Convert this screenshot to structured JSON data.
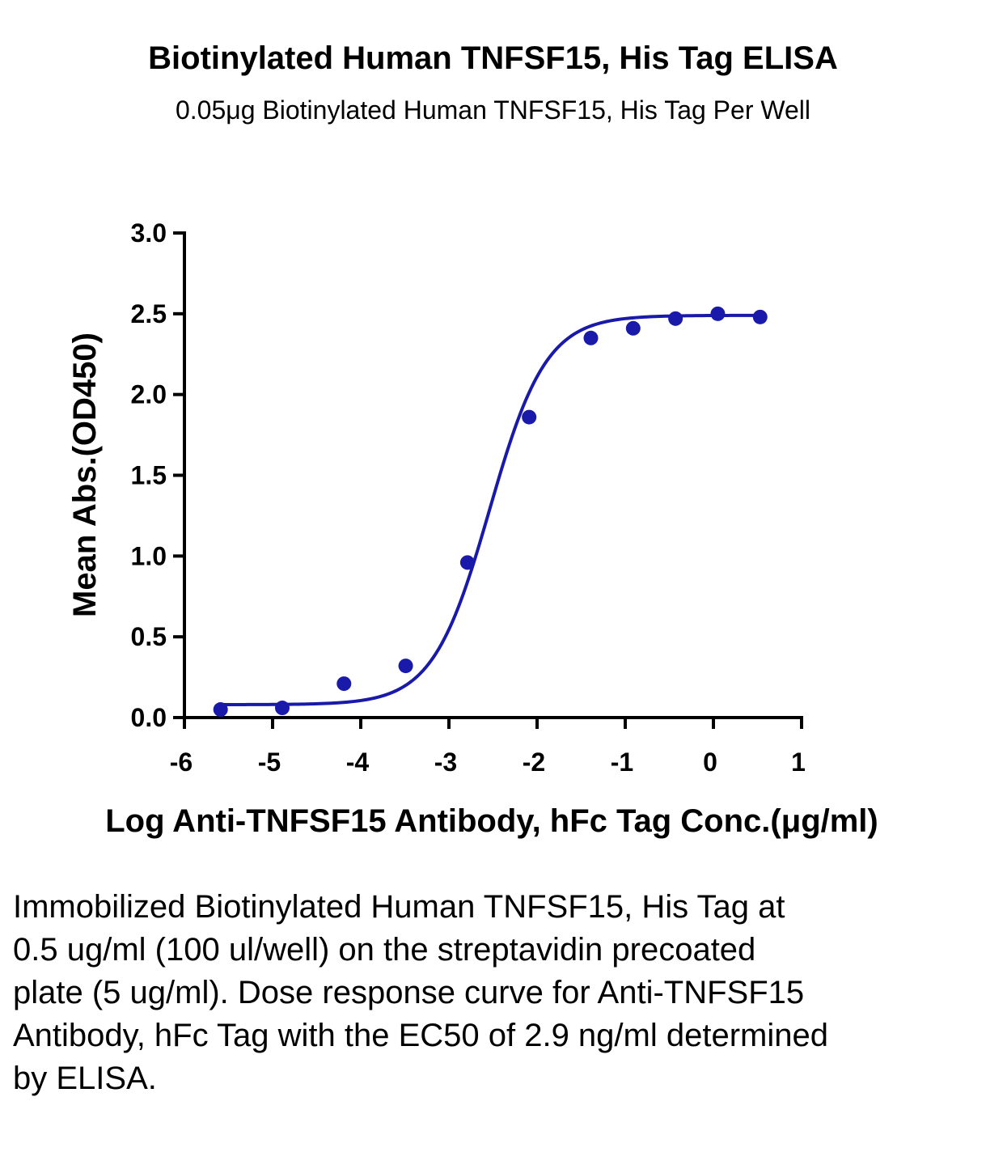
{
  "chart_data": {
    "type": "scatter",
    "title": "Biotinylated Human TNFSF15, His Tag ELISA",
    "subtitle": "0.05μg Biotinylated Human TNFSF15, His Tag Per Well",
    "xlabel": "Log Anti-TNFSF15 Antibody, hFc Tag Conc.(μg/ml)",
    "ylabel": "Mean Abs.(OD450)",
    "xlim": [
      -6,
      1
    ],
    "ylim": [
      0,
      3.0
    ],
    "xticks": [
      "-6",
      "-5",
      "-4",
      "-3",
      "-2",
      "-1",
      "0",
      "1"
    ],
    "yticks": [
      "0.0",
      "0.5",
      "1.0",
      "1.5",
      "2.0",
      "2.5",
      "3.0"
    ],
    "grid": false,
    "color": "#1a1aaa",
    "series": [
      {
        "x": [
          -5.59,
          -4.89,
          -4.19,
          -3.49,
          -2.79,
          -2.09,
          -1.39,
          -0.91,
          -0.43,
          0.05,
          0.53
        ],
        "y": [
          0.05,
          0.06,
          0.21,
          0.32,
          0.96,
          1.86,
          2.35,
          2.41,
          2.47,
          2.5,
          2.48
        ]
      }
    ],
    "fit_curve": {
      "model": "4PL",
      "bottom": 0.08,
      "top": 2.49,
      "log_ec50": -2.54,
      "hill_slope": 1.35
    }
  },
  "caption": "Immobilized Biotinylated Human TNFSF15, His Tag at 0.5 ug/ml (100 ul/well) on the streptavidin precoated plate (5 ug/ml). Dose response curve for Anti-TNFSF15 Antibody, hFc Tag with the EC50 of 2.9 ng/ml determined by ELISA."
}
